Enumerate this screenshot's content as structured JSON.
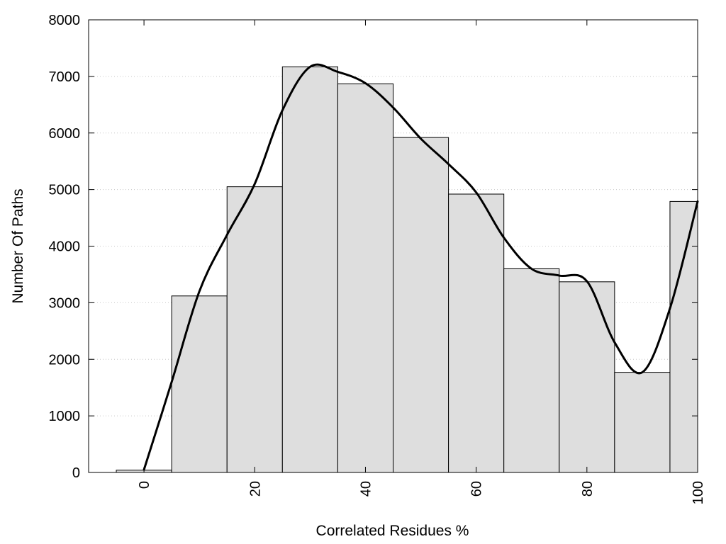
{
  "chart_data": {
    "type": "bar",
    "title": "",
    "xlabel": "Correlated Residues %",
    "ylabel": "Number Of Paths",
    "xlim": [
      -10,
      100
    ],
    "ylim": [
      0,
      8000
    ],
    "x_ticks": [
      0,
      20,
      40,
      60,
      80,
      100
    ],
    "y_ticks": [
      0,
      1000,
      2000,
      3000,
      4000,
      5000,
      6000,
      7000,
      8000
    ],
    "grid": "horizontal-dotted",
    "bar_width": 10,
    "bins": [
      {
        "x": 0,
        "value": 40
      },
      {
        "x": 10,
        "value": 3120
      },
      {
        "x": 20,
        "value": 5050
      },
      {
        "x": 30,
        "value": 7170
      },
      {
        "x": 40,
        "value": 6870
      },
      {
        "x": 50,
        "value": 5920
      },
      {
        "x": 60,
        "value": 4920
      },
      {
        "x": 70,
        "value": 3600
      },
      {
        "x": 80,
        "value": 3370
      },
      {
        "x": 90,
        "value": 1770
      },
      {
        "x": 100,
        "value": 4790
      }
    ],
    "curve": {
      "type": "smooth-line",
      "points": [
        [
          0,
          50
        ],
        [
          5,
          1600
        ],
        [
          10,
          3200
        ],
        [
          15,
          4200
        ],
        [
          20,
          5100
        ],
        [
          25,
          6400
        ],
        [
          30,
          7170
        ],
        [
          35,
          7080
        ],
        [
          40,
          6880
        ],
        [
          45,
          6450
        ],
        [
          50,
          5900
        ],
        [
          55,
          5450
        ],
        [
          60,
          4950
        ],
        [
          65,
          4150
        ],
        [
          70,
          3600
        ],
        [
          75,
          3480
        ],
        [
          80,
          3380
        ],
        [
          85,
          2300
        ],
        [
          90,
          1770
        ],
        [
          95,
          2900
        ],
        [
          100,
          4790
        ]
      ]
    },
    "colors": {
      "bar_fill": "#dedede",
      "bar_stroke": "#000000",
      "curve": "#000000",
      "grid": "#c8c8c8"
    }
  }
}
